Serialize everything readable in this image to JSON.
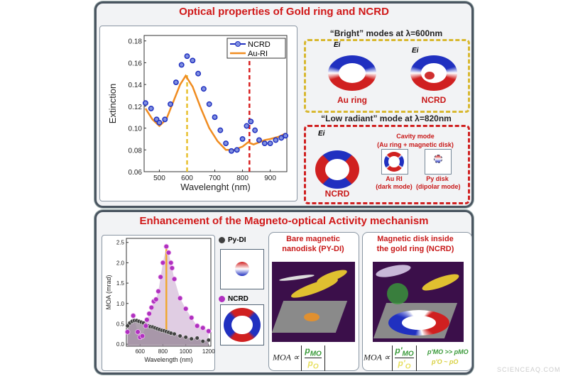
{
  "top_panel": {
    "title": "Optical properties of Gold ring and NCRD",
    "bright": {
      "heading": "“Bright” modes at λ=600nm",
      "field_label": "Ei",
      "items": [
        "Au ring",
        "NCRD"
      ],
      "color": "#d8b830"
    },
    "low": {
      "heading": "“Low radiant” mode at λ=820nm",
      "field_label": "Ei",
      "ncrd": "NCRD",
      "cavity_title": "Cavity mode",
      "cavity_sub": "(Au ring + magnetic disk)",
      "au_label": "Au RI",
      "au_sub": "(dark mode)",
      "py_label": "Py disk",
      "py_sub": "(dipolar mode)",
      "color": "#d02020"
    }
  },
  "bottom_panel": {
    "title": "Enhancement of the Magneto-optical Activity mechanism",
    "legend": [
      "Py-DI",
      "NCRD"
    ],
    "pydi": {
      "title_line1": "Bare magnetic",
      "title_line2": "nanodisk (PY-DI)",
      "eq_lhs": "MOA ∝",
      "num": "p",
      "num_sub": "MO",
      "den": "p",
      "den_sub": "O"
    },
    "ncrd": {
      "title_line1": "Magnetic disk inside",
      "title_line2": "the gold ring (NCRD)",
      "eq_lhs": "MOA ∝",
      "num": "p'",
      "num_sub": "MO",
      "den": "p'",
      "den_sub": "O",
      "rel1": "p'MO >> pMO",
      "rel2": "p'O ~ pO"
    }
  },
  "watermark": "SCIENCEAQ.COM",
  "chart_data": [
    {
      "type": "line",
      "xlabel": "Wavelenght   (nm)",
      "ylabel": "Extinction",
      "xlim": [
        445,
        960
      ],
      "ylim": [
        0.06,
        0.185
      ],
      "xticks": [
        500,
        600,
        700,
        800,
        900
      ],
      "yticks": [
        0.06,
        0.08,
        0.1,
        0.12,
        0.14,
        0.16,
        0.18
      ],
      "legend": "top-right",
      "markers": [
        {
          "x": 600,
          "color": "#e8c030"
        },
        {
          "x": 825,
          "color": "#d82020"
        }
      ],
      "series": [
        {
          "name": "NCRD",
          "color": "#2030c0",
          "x": [
            450,
            470,
            490,
            500,
            520,
            540,
            560,
            580,
            600,
            620,
            640,
            660,
            680,
            700,
            720,
            740,
            760,
            780,
            800,
            815,
            830,
            845,
            860,
            880,
            900,
            920,
            940,
            955
          ],
          "y": [
            0.123,
            0.118,
            0.108,
            0.105,
            0.108,
            0.122,
            0.142,
            0.158,
            0.166,
            0.162,
            0.15,
            0.136,
            0.122,
            0.11,
            0.098,
            0.086,
            0.079,
            0.08,
            0.09,
            0.102,
            0.106,
            0.098,
            0.089,
            0.086,
            0.086,
            0.089,
            0.091,
            0.093
          ]
        },
        {
          "name": "Au-RI",
          "color": "#f08c20",
          "x": [
            450,
            475,
            500,
            525,
            550,
            575,
            595,
            620,
            650,
            680,
            710,
            740,
            770,
            800,
            820,
            840,
            860,
            880,
            900,
            930,
            955
          ],
          "y": [
            0.118,
            0.108,
            0.102,
            0.108,
            0.124,
            0.14,
            0.148,
            0.138,
            0.118,
            0.1,
            0.088,
            0.08,
            0.08,
            0.083,
            0.087,
            0.085,
            0.087,
            0.089,
            0.09,
            0.092,
            0.095
          ]
        }
      ]
    },
    {
      "type": "scatter",
      "xlabel": "Wavelength (nm)",
      "ylabel": "MOA (mrad)",
      "xlim": [
        480,
        1220
      ],
      "ylim": [
        -0.05,
        2.6
      ],
      "xticks": [
        600,
        800,
        1000,
        1200
      ],
      "yticks": [
        0.0,
        0.5,
        1.0,
        1.5,
        2.0,
        2.5
      ],
      "legend": "right",
      "marker": {
        "x": 830,
        "color": "#f0a830"
      },
      "series": [
        {
          "name": "Py-DI",
          "color": "#404040",
          "x": [
            490,
            510,
            530,
            550,
            570,
            590,
            610,
            630,
            650,
            670,
            690,
            710,
            730,
            750,
            770,
            790,
            810,
            830,
            850,
            870,
            900,
            950,
            1000,
            1050,
            1100,
            1150,
            1200
          ],
          "y": [
            0.45,
            0.52,
            0.56,
            0.58,
            0.58,
            0.56,
            0.54,
            0.52,
            0.48,
            0.45,
            0.43,
            0.42,
            0.4,
            0.38,
            0.36,
            0.34,
            0.33,
            0.31,
            0.29,
            0.27,
            0.25,
            0.2,
            0.17,
            0.13,
            0.15,
            0.07,
            0.1
          ]
        },
        {
          "name": "NCRD",
          "color": "#b030c0",
          "x": [
            490,
            540,
            580,
            600,
            620,
            650,
            660,
            680,
            700,
            720,
            740,
            760,
            780,
            800,
            830,
            850,
            870,
            880,
            900,
            950,
            1000,
            1050,
            1100,
            1150,
            1200
          ],
          "y": [
            0.3,
            0.7,
            0.3,
            0.17,
            0.2,
            0.45,
            0.6,
            0.75,
            0.9,
            1.05,
            1.1,
            1.3,
            1.65,
            2.0,
            2.4,
            2.25,
            2.0,
            1.87,
            1.6,
            1.13,
            0.87,
            0.65,
            0.45,
            0.4,
            0.32
          ]
        }
      ]
    }
  ]
}
